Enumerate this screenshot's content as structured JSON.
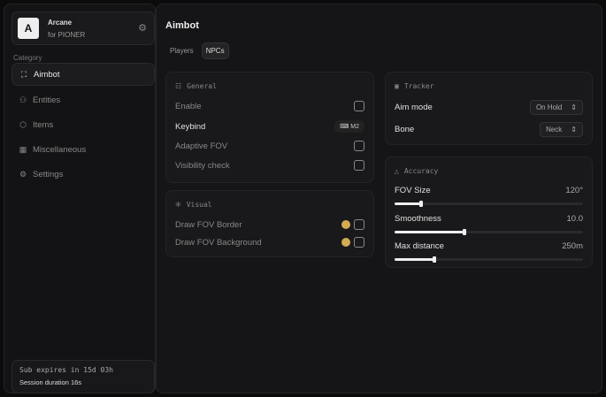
{
  "brand": {
    "logo": "A",
    "name": "Arcane",
    "subtitle": "for PIONER",
    "icon": "gear-icon"
  },
  "sidebar": {
    "category_label": "Category",
    "items": [
      {
        "label": "Aimbot",
        "icon": "crosshair-icon",
        "active": true
      },
      {
        "label": "Entities",
        "icon": "users-icon",
        "active": false
      },
      {
        "label": "Items",
        "icon": "box-icon",
        "active": false
      },
      {
        "label": "Miscellaneous",
        "icon": "grid-icon",
        "active": false
      },
      {
        "label": "Settings",
        "icon": "gear-icon",
        "active": false
      }
    ]
  },
  "footer": {
    "subscription": "Sub expires in 15d 03h",
    "session": "Session duration 16s"
  },
  "main": {
    "title": "Aimbot",
    "tabs": [
      {
        "label": "Players",
        "active": false
      },
      {
        "label": "NPCs",
        "active": true
      }
    ]
  },
  "general": {
    "title": "General",
    "enable": {
      "label": "Enable",
      "checked": false
    },
    "keybind": {
      "label": "Keybind",
      "value": "M2"
    },
    "adaptive_fov": {
      "label": "Adaptive FOV",
      "checked": false
    },
    "visibility_check": {
      "label": "Visibility check",
      "checked": false
    }
  },
  "visual": {
    "title": "Visual",
    "draw_fov_border": {
      "label": "Draw FOV Border",
      "color": "#d4aa52",
      "checked": false
    },
    "draw_fov_background": {
      "label": "Draw FOV Background",
      "color": "#d4aa52",
      "checked": false
    }
  },
  "tracker": {
    "title": "Tracker",
    "aim_mode": {
      "label": "Aim mode",
      "value": "On Hold"
    },
    "bone": {
      "label": "Bone",
      "value": "Neck"
    }
  },
  "accuracy": {
    "title": "Accuracy",
    "fov_size": {
      "label": "FOV Size",
      "value": "120°",
      "fraction": 0.14
    },
    "smoothness": {
      "label": "Smoothness",
      "value": "10.0",
      "fraction": 0.37
    },
    "max_distance": {
      "label": "Max distance",
      "value": "250m",
      "fraction": 0.21
    }
  }
}
